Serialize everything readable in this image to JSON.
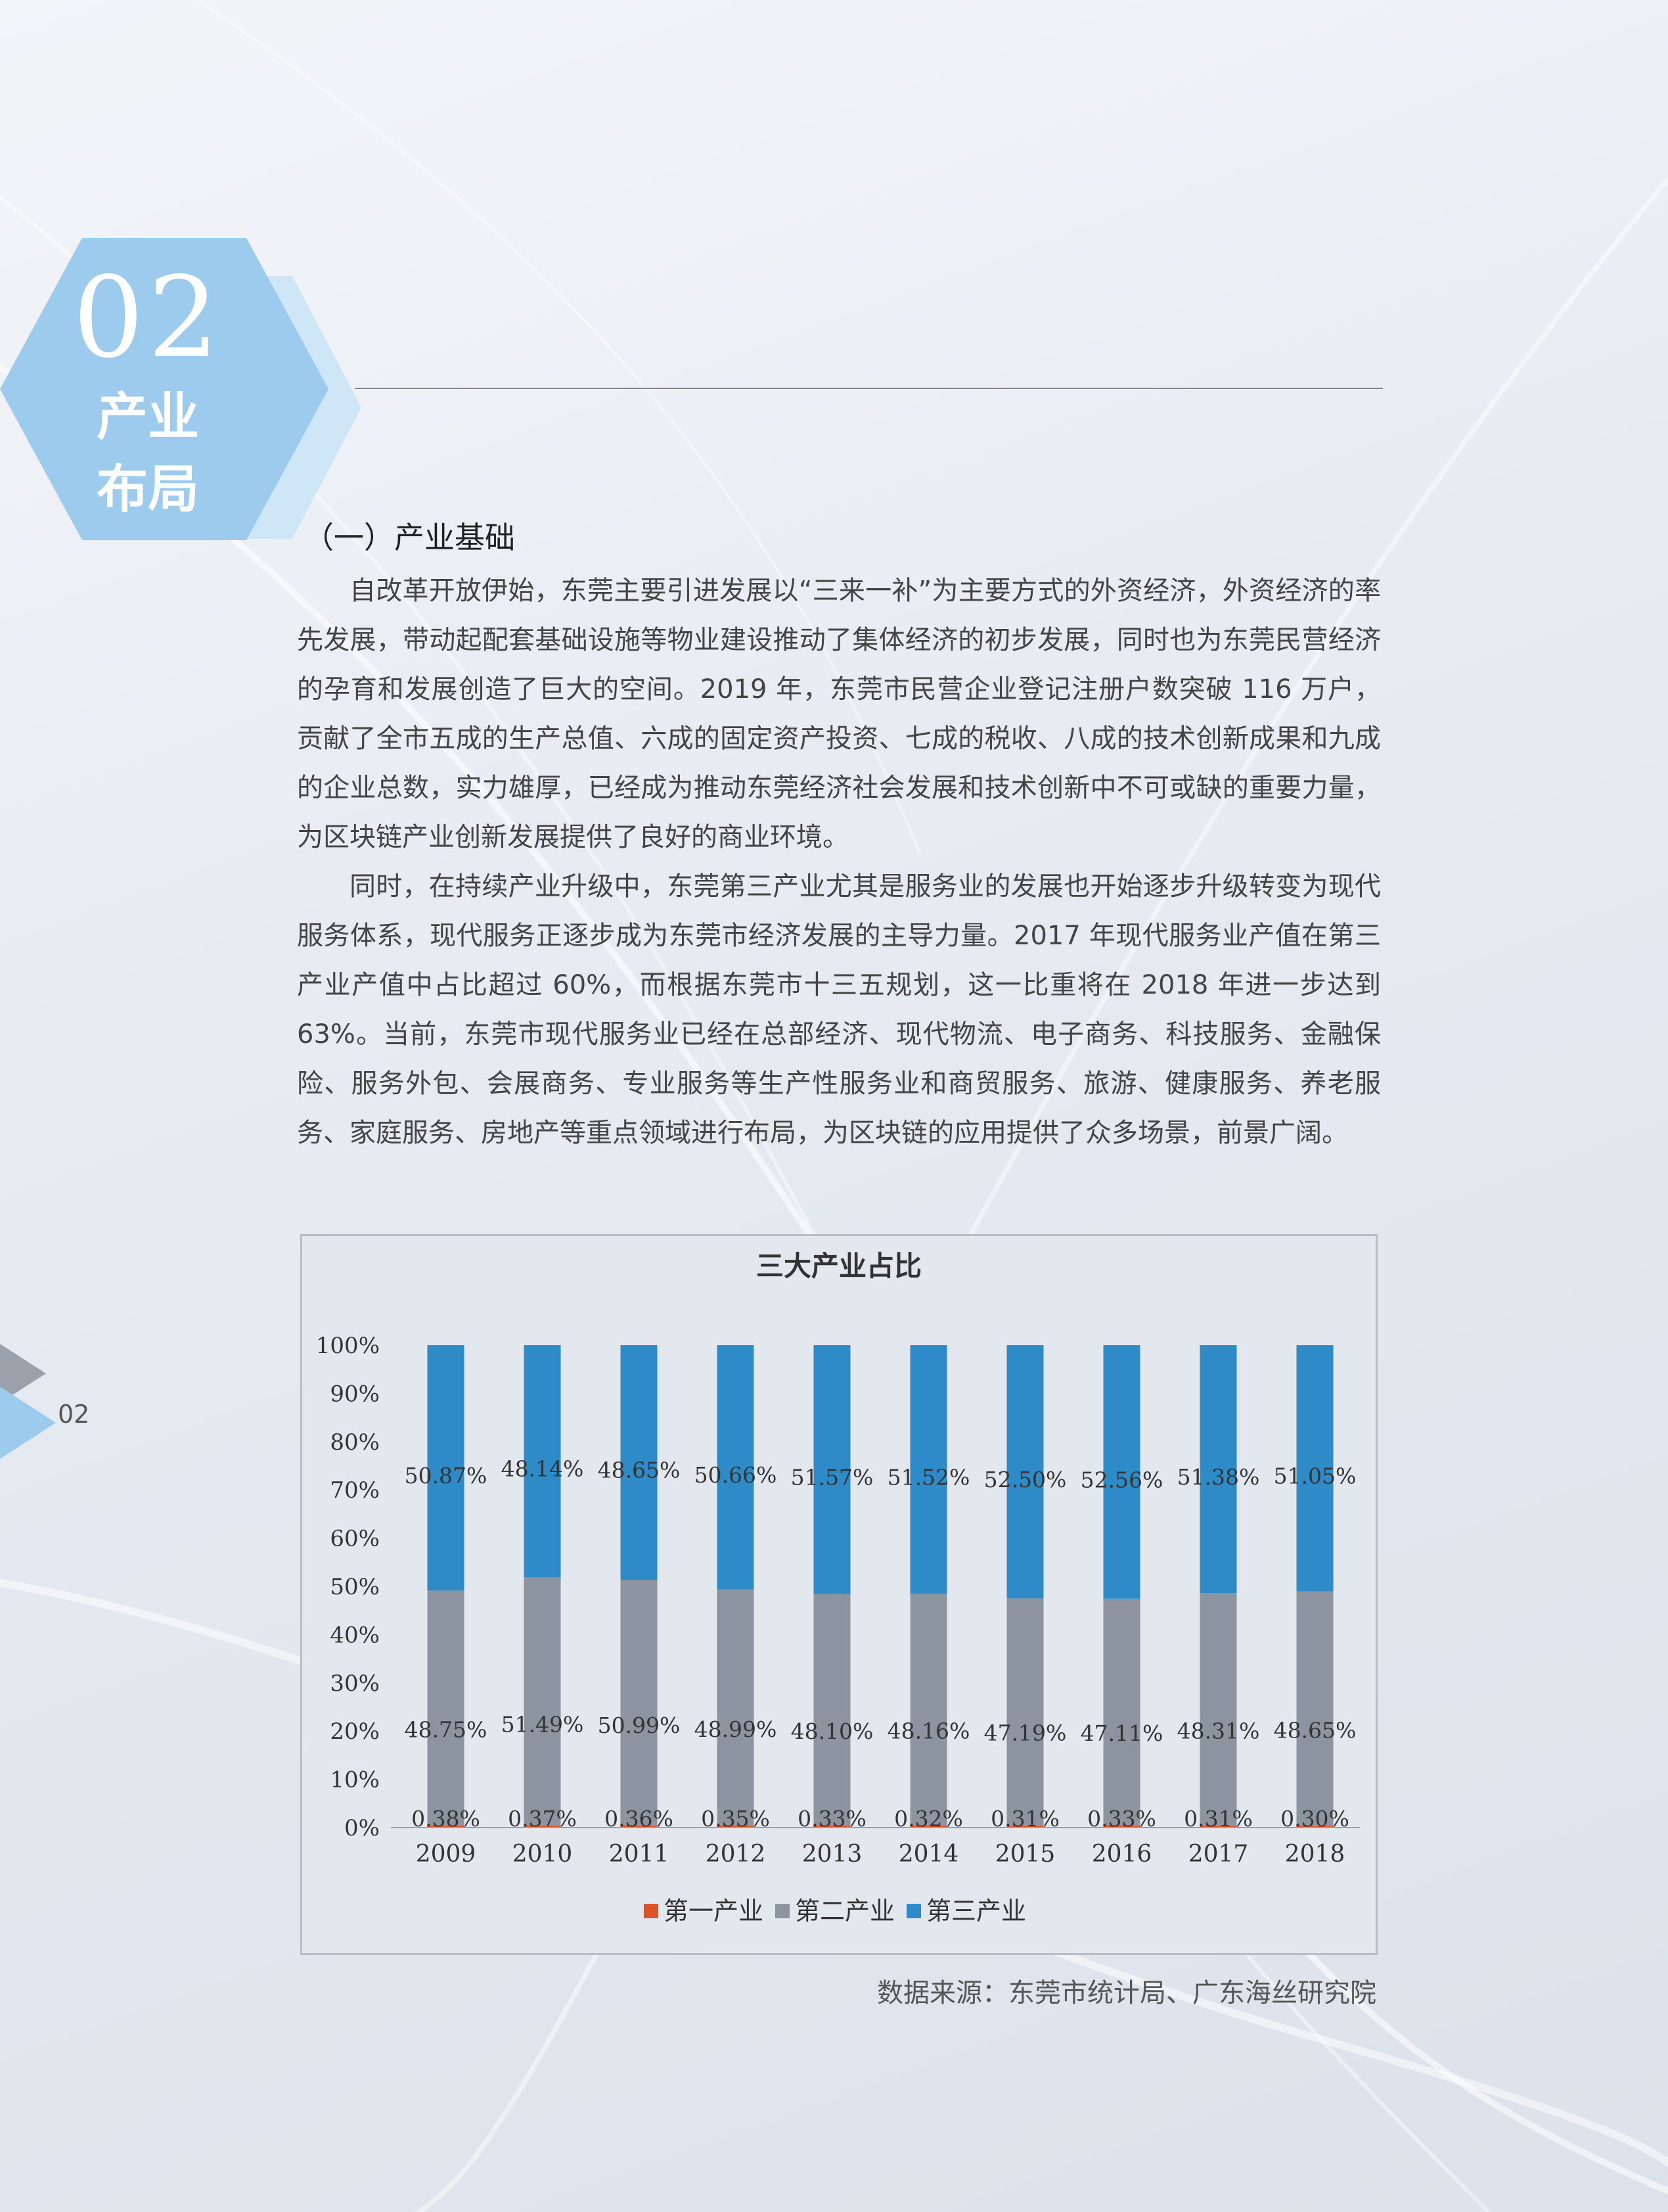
{
  "badge": {
    "number": "02",
    "title_line1": "产业",
    "title_line2": "布局"
  },
  "page_number": "02",
  "section_heading": "（一）产业基础",
  "paragraphs": [
    "自改革开放伊始，东莞主要引进发展以“三来一补”为主要方式的外资经济，外资经济的率先发展，带动起配套基础设施等物业建设推动了集体经济的初步发展，同时也为东莞民营经济的孕育和发展创造了巨大的空间。2019 年，东莞市民营企业登记注册户数突破 116 万户，贡献了全市五成的生产总值、六成的固定资产投资、七成的税收、八成的技术创新成果和九成的企业总数，实力雄厚，已经成为推动东莞经济社会发展和技术创新中不可或缺的重要力量，为区块链产业创新发展提供了良好的商业环境。",
    "同时，在持续产业升级中，东莞第三产业尤其是服务业的发展也开始逐步升级转变为现代服务体系，现代服务正逐步成为东莞市经济发展的主导力量。2017 年现代服务业产值在第三产业产值中占比超过 60%，而根据东莞市十三五规划，这一比重将在 2018 年进一步达到 63%。当前，东莞市现代服务业已经在总部经济、现代物流、电子商务、科技服务、金融保险、服务外包、会展商务、专业服务等生产性服务业和商贸服务、旅游、健康服务、养老服务、家庭服务、房地产等重点领域进行布局，为区块链的应用提供了众多场景，前景广阔。"
  ],
  "chart_data": {
    "type": "bar",
    "stacked": true,
    "title": "三大产业占比",
    "categories": [
      "2009",
      "2010",
      "2011",
      "2012",
      "2013",
      "2014",
      "2015",
      "2016",
      "2017",
      "2018"
    ],
    "series": [
      {
        "name": "第一产业",
        "color": "#d9542b",
        "values": [
          0.38,
          0.37,
          0.36,
          0.35,
          0.33,
          0.32,
          0.31,
          0.33,
          0.31,
          0.3
        ],
        "labels": [
          "0.38%",
          "0.37%",
          "0.36%",
          "0.35%",
          "0.33%",
          "0.32%",
          "0.31%",
          "0.33%",
          "0.31%",
          "0.30%"
        ]
      },
      {
        "name": "第二产业",
        "color": "#8c959f",
        "values": [
          48.75,
          51.49,
          50.99,
          48.99,
          48.1,
          48.16,
          47.19,
          47.11,
          48.31,
          48.65
        ],
        "labels": [
          "48.75%",
          "51.49%",
          "50.99%",
          "48.99%",
          "48.10%",
          "48.16%",
          "47.19%",
          "47.11%",
          "48.31%",
          "48.65%"
        ]
      },
      {
        "name": "第三产业",
        "color": "#2e8bc7",
        "values": [
          50.87,
          48.14,
          48.65,
          50.66,
          51.57,
          51.52,
          52.5,
          52.56,
          51.38,
          51.05
        ],
        "labels": [
          "50.87%",
          "48.14%",
          "48.65%",
          "50.66%",
          "51.57%",
          "51.52%",
          "52.50%",
          "52.56%",
          "51.38%",
          "51.05%"
        ]
      }
    ],
    "y_ticks": [
      "0%",
      "10%",
      "20%",
      "30%",
      "40%",
      "50%",
      "60%",
      "70%",
      "80%",
      "90%",
      "100%"
    ],
    "ylim": [
      0,
      100
    ],
    "legend_position": "bottom",
    "grid": false
  },
  "source": "数据来源：东莞市统计局、广东海丝研究院"
}
